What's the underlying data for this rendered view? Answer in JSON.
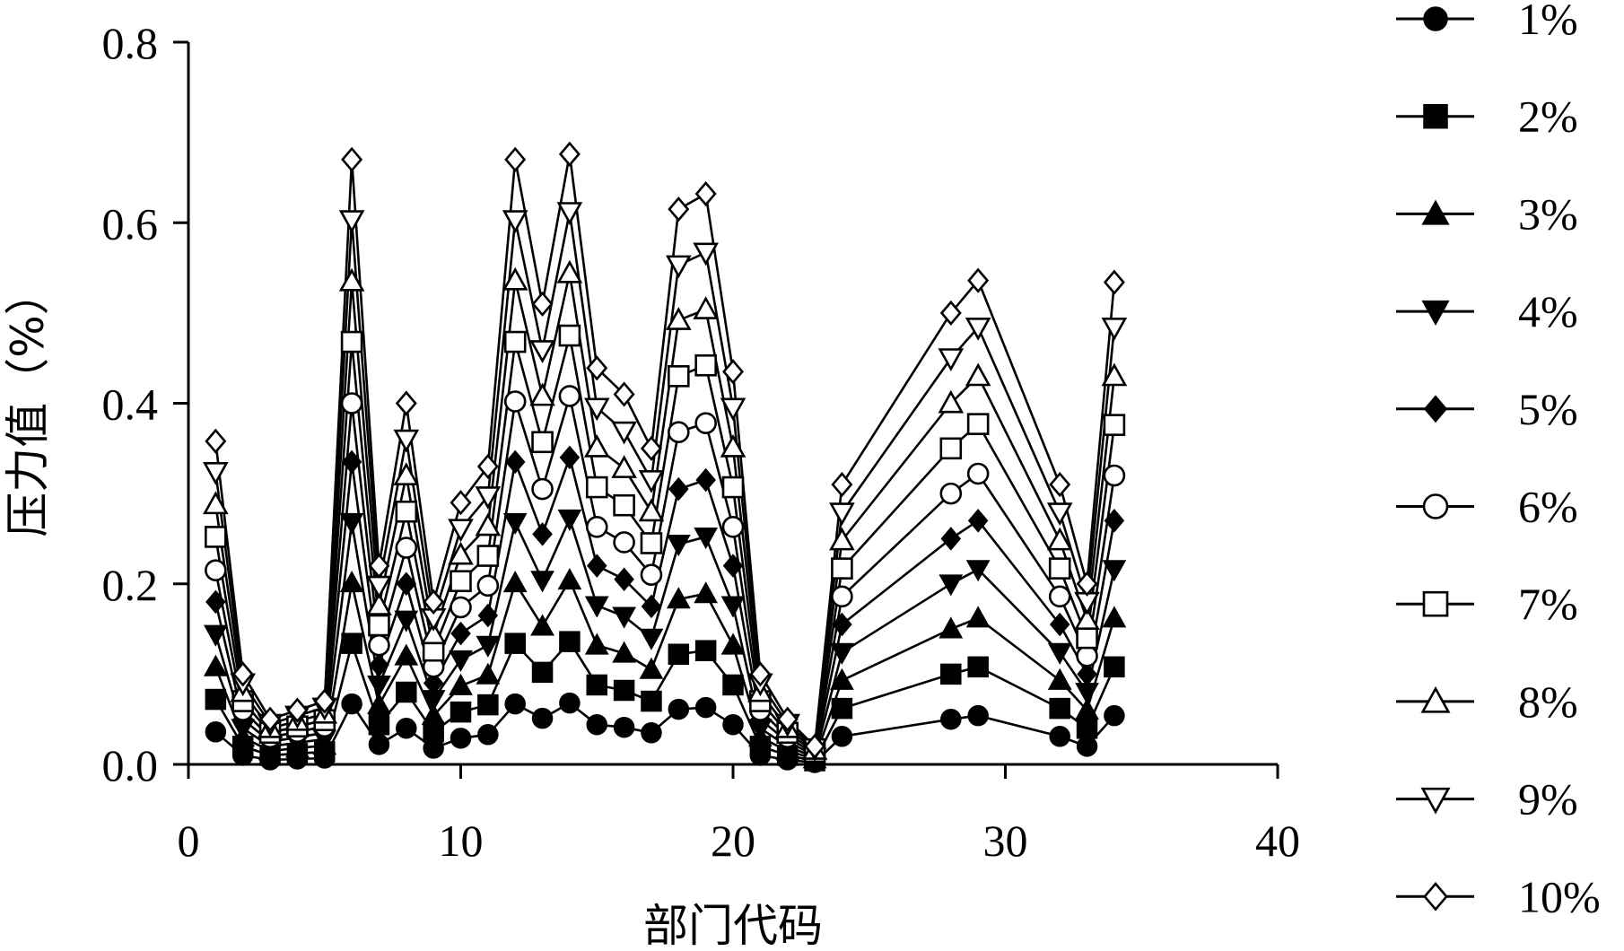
{
  "chart_data": {
    "type": "line",
    "title": "",
    "xlabel": "部门代码",
    "ylabel": "压力值（%）",
    "xlim": [
      0,
      40
    ],
    "ylim": [
      0,
      0.8
    ],
    "x_ticks": [
      "0",
      "10",
      "20",
      "30",
      "40"
    ],
    "y_ticks": [
      "0.0",
      "0.2",
      "0.4",
      "0.6",
      "0.8"
    ],
    "grid": false,
    "legend_position": "right",
    "x": [
      1,
      2,
      3,
      4,
      5,
      6,
      7,
      8,
      9,
      10,
      11,
      12,
      13,
      14,
      15,
      16,
      17,
      18,
      19,
      20,
      21,
      22,
      23,
      24,
      28,
      29,
      32,
      33,
      34
    ],
    "series": [
      {
        "name": "1%",
        "marker": "circle-filled",
        "values": [
          0.036,
          0.01,
          0.005,
          0.006,
          0.007,
          0.067,
          0.022,
          0.04,
          0.018,
          0.029,
          0.033,
          0.067,
          0.051,
          0.068,
          0.044,
          0.041,
          0.035,
          0.061,
          0.063,
          0.044,
          0.01,
          0.005,
          0.002,
          0.031,
          0.05,
          0.054,
          0.031,
          0.02,
          0.054
        ]
      },
      {
        "name": "2%",
        "marker": "square-filled",
        "values": [
          0.072,
          0.02,
          0.01,
          0.012,
          0.014,
          0.134,
          0.044,
          0.08,
          0.036,
          0.058,
          0.066,
          0.134,
          0.102,
          0.136,
          0.088,
          0.082,
          0.07,
          0.122,
          0.126,
          0.088,
          0.02,
          0.01,
          0.004,
          0.062,
          0.1,
          0.108,
          0.062,
          0.04,
          0.108
        ]
      },
      {
        "name": "3%",
        "marker": "triangle-up-filled",
        "values": [
          0.108,
          0.03,
          0.015,
          0.018,
          0.021,
          0.201,
          0.066,
          0.12,
          0.054,
          0.087,
          0.099,
          0.201,
          0.153,
          0.204,
          0.132,
          0.123,
          0.105,
          0.183,
          0.189,
          0.132,
          0.03,
          0.015,
          0.006,
          0.093,
          0.15,
          0.162,
          0.093,
          0.06,
          0.162
        ]
      },
      {
        "name": "4%",
        "marker": "triangle-down-filled",
        "values": [
          0.144,
          0.04,
          0.02,
          0.024,
          0.028,
          0.268,
          0.088,
          0.16,
          0.072,
          0.116,
          0.132,
          0.268,
          0.204,
          0.272,
          0.176,
          0.164,
          0.14,
          0.244,
          0.252,
          0.176,
          0.04,
          0.02,
          0.008,
          0.124,
          0.2,
          0.216,
          0.124,
          0.08,
          0.216
        ]
      },
      {
        "name": "5%",
        "marker": "diamond-filled",
        "values": [
          0.18,
          0.05,
          0.025,
          0.03,
          0.035,
          0.335,
          0.11,
          0.2,
          0.09,
          0.145,
          0.165,
          0.335,
          0.255,
          0.34,
          0.22,
          0.205,
          0.175,
          0.305,
          0.315,
          0.22,
          0.05,
          0.025,
          0.01,
          0.155,
          0.25,
          0.27,
          0.155,
          0.1,
          0.27
        ]
      },
      {
        "name": "6%",
        "marker": "circle-open",
        "values": [
          0.215,
          0.06,
          0.03,
          0.036,
          0.042,
          0.4,
          0.132,
          0.24,
          0.108,
          0.174,
          0.198,
          0.402,
          0.305,
          0.408,
          0.263,
          0.246,
          0.21,
          0.368,
          0.378,
          0.263,
          0.06,
          0.03,
          0.012,
          0.186,
          0.3,
          0.322,
          0.186,
          0.12,
          0.32
        ]
      },
      {
        "name": "7%",
        "marker": "square-open",
        "values": [
          0.252,
          0.07,
          0.035,
          0.042,
          0.049,
          0.468,
          0.154,
          0.28,
          0.126,
          0.203,
          0.231,
          0.468,
          0.357,
          0.475,
          0.307,
          0.287,
          0.245,
          0.43,
          0.442,
          0.307,
          0.07,
          0.035,
          0.014,
          0.217,
          0.35,
          0.377,
          0.217,
          0.14,
          0.376
        ]
      },
      {
        "name": "8%",
        "marker": "triangle-up-open",
        "values": [
          0.288,
          0.08,
          0.04,
          0.048,
          0.056,
          0.535,
          0.176,
          0.32,
          0.144,
          0.232,
          0.264,
          0.536,
          0.408,
          0.544,
          0.351,
          0.328,
          0.28,
          0.492,
          0.504,
          0.351,
          0.08,
          0.04,
          0.016,
          0.248,
          0.4,
          0.43,
          0.248,
          0.16,
          0.43
        ]
      },
      {
        "name": "9%",
        "marker": "triangle-down-open",
        "values": [
          0.324,
          0.09,
          0.045,
          0.054,
          0.063,
          0.603,
          0.198,
          0.36,
          0.162,
          0.261,
          0.297,
          0.603,
          0.459,
          0.612,
          0.395,
          0.369,
          0.315,
          0.553,
          0.567,
          0.395,
          0.09,
          0.045,
          0.018,
          0.279,
          0.45,
          0.484,
          0.279,
          0.18,
          0.484
        ]
      },
      {
        "name": "10%",
        "marker": "diamond-open",
        "values": [
          0.358,
          0.1,
          0.05,
          0.06,
          0.07,
          0.67,
          0.22,
          0.4,
          0.18,
          0.29,
          0.33,
          0.67,
          0.51,
          0.676,
          0.439,
          0.41,
          0.35,
          0.615,
          0.632,
          0.435,
          0.1,
          0.05,
          0.02,
          0.31,
          0.5,
          0.536,
          0.31,
          0.2,
          0.534
        ]
      }
    ]
  }
}
